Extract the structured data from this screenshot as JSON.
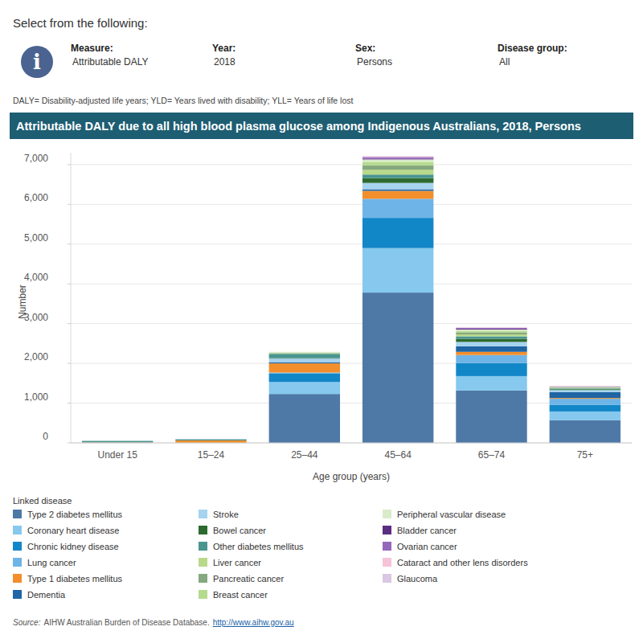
{
  "header": {
    "prompt": "Select from the following:",
    "filters": [
      {
        "label": "Measure:",
        "value": "Attributable DALY"
      },
      {
        "label": "Year:",
        "value": "2018"
      },
      {
        "label": "Sex:",
        "value": "Persons"
      },
      {
        "label": "Disease group:",
        "value": "All"
      }
    ],
    "note": "DALY= Disability-adjusted life years; YLD= Years lived with disability; YLL= Years of life lost"
  },
  "chart_data": {
    "type": "bar",
    "stacked": true,
    "grid": true,
    "title": "Attributable DALY due to all high blood plasma glucose among Indigenous Australians, 2018, Persons",
    "x_label": "Age group (years)",
    "y_label": "Number",
    "legend_title": "Linked disease",
    "categories": [
      "Under 15",
      "15–24",
      "25–44",
      "45–64",
      "65–74",
      "75+"
    ],
    "ylim": [
      0,
      7300
    ],
    "yticks": [
      0,
      {
        "value": 1000,
        "label": "1,000"
      },
      {
        "value": 2000,
        "label": "2,000"
      },
      {
        "value": 3000,
        "label": "3,000"
      },
      {
        "value": 4000,
        "label": "4,000"
      },
      {
        "value": 5000,
        "label": "5,000"
      },
      {
        "value": 6000,
        "label": "6,000"
      },
      {
        "value": 7000,
        "label": "7,000"
      }
    ],
    "series": [
      {
        "name": "Type 2 diabetes mellitus",
        "color": "#4e79a7",
        "values": [
          0,
          0,
          1230,
          3780,
          1320,
          570
        ]
      },
      {
        "name": "Coronary heart disease",
        "color": "#86c8ee",
        "values": [
          0,
          0,
          300,
          1120,
          360,
          220
        ]
      },
      {
        "name": "Chronic kidney disease",
        "color": "#1287c8",
        "values": [
          0,
          0,
          220,
          760,
          330,
          170
        ]
      },
      {
        "name": "Lung cancer",
        "color": "#6fb4e6",
        "values": [
          0,
          0,
          20,
          480,
          200,
          150
        ]
      },
      {
        "name": "Type 1 diabetes mellitus",
        "color": "#f28e2b",
        "values": [
          10,
          60,
          230,
          200,
          80,
          20
        ]
      },
      {
        "name": "Dementia",
        "color": "#1f65a3",
        "values": [
          0,
          0,
          30,
          40,
          140,
          150
        ]
      },
      {
        "name": "Stroke",
        "color": "#a6d3ef",
        "values": [
          0,
          0,
          90,
          160,
          110,
          50
        ]
      },
      {
        "name": "Bowel cancer",
        "color": "#2d6a2f",
        "values": [
          0,
          0,
          10,
          120,
          80,
          20
        ]
      },
      {
        "name": "Other diabetes mellitus",
        "color": "#4a9590",
        "values": [
          40,
          30,
          110,
          90,
          60,
          20
        ]
      },
      {
        "name": "Liver cancer",
        "color": "#b9d98a",
        "values": [
          0,
          0,
          10,
          120,
          50,
          10
        ]
      },
      {
        "name": "Pancreatic cancer",
        "color": "#85a87e",
        "values": [
          0,
          0,
          10,
          110,
          50,
          10
        ]
      },
      {
        "name": "Breast cancer",
        "color": "#b5db8e",
        "values": [
          0,
          0,
          10,
          90,
          40,
          10
        ]
      },
      {
        "name": "Peripheral vascular disease",
        "color": "#d9ebc9",
        "values": [
          0,
          0,
          20,
          60,
          30,
          10
        ]
      },
      {
        "name": "Bladder cancer",
        "color": "#5a2d82",
        "values": [
          0,
          0,
          0,
          20,
          20,
          5
        ]
      },
      {
        "name": "Ovarian cancer",
        "color": "#9467bd",
        "values": [
          0,
          0,
          0,
          40,
          20,
          5
        ]
      },
      {
        "name": "Cataract and other lens disorders",
        "color": "#f6c3d8",
        "values": [
          0,
          0,
          0,
          20,
          10,
          10
        ]
      },
      {
        "name": "Glaucoma",
        "color": "#d9c7e3",
        "values": [
          0,
          0,
          0,
          10,
          10,
          5
        ]
      }
    ]
  },
  "footer": {
    "source_label": "Source:",
    "source_text": "AIHW Australian Burden of Disease Database.",
    "source_url": "http://www.aihw.gov.au"
  }
}
